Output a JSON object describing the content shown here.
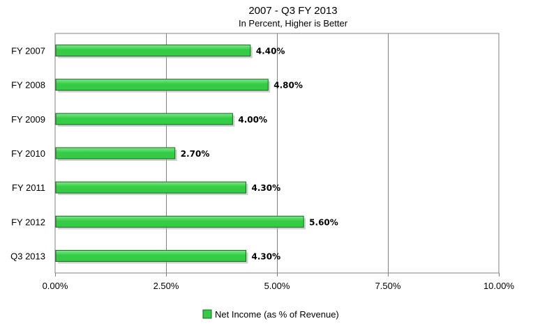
{
  "chart_data": {
    "type": "bar",
    "orientation": "horizontal",
    "title": "2007 - Q3 FY 2013",
    "subtitle": "In Percent, Higher is Better",
    "categories": [
      "FY 2007",
      "FY 2008",
      "FY 2009",
      "FY 2010",
      "FY 2011",
      "FY 2012",
      "Q3 2013"
    ],
    "series": [
      {
        "name": "Net Income (as % of Revenue)",
        "values": [
          4.4,
          4.8,
          4.0,
          2.7,
          4.3,
          5.6,
          4.3
        ],
        "labels": [
          "4.40%",
          "4.80%",
          "4.00%",
          "2.70%",
          "4.30%",
          "5.60%",
          "4.30%"
        ]
      }
    ],
    "xlim": [
      0,
      10
    ],
    "xticks": [
      0,
      2.5,
      5,
      7.5,
      10
    ],
    "xtick_labels": [
      "0.00%",
      "2.50%",
      "5.00%",
      "7.50%",
      "10.00%"
    ],
    "xlabel": "",
    "ylabel": "",
    "grid": "vertical",
    "legend": "bottom-center",
    "colors": {
      "bar_fill": "#33cc44",
      "bar_highlight": "#7ee88a",
      "bar_border": "#1a6622",
      "bar_shadow": "#b0b0b0",
      "grid": "#808080",
      "axis": "#808080"
    }
  }
}
